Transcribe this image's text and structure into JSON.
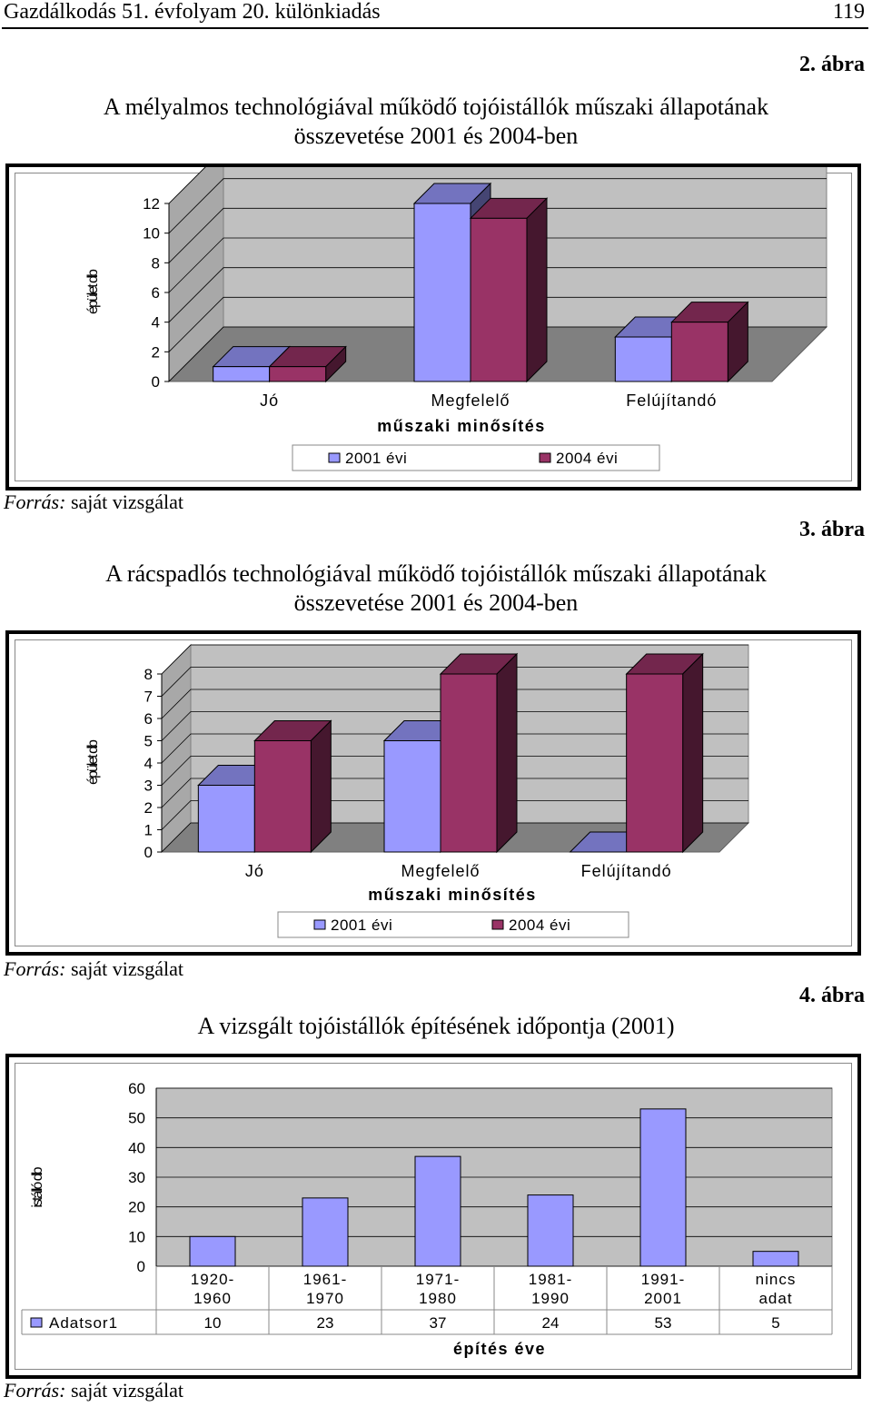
{
  "header": {
    "journal": "Gazdálkodás 51. évfolyam 20. különkiadás",
    "page_number": "119"
  },
  "figures": [
    {
      "label": "2. ábra",
      "title_line1": "A mélyalmos technológiával működő tojóistállók műszaki állapotának",
      "title_line2": "összevetése 2001 és 2004-ben",
      "source_prefix": "Forrás:",
      "source_text": " saját vizsgálat"
    },
    {
      "label": "3. ábra",
      "title_line1": "A rácspadlós technológiával működő tojóistállók műszaki állapotának",
      "title_line2": "összevetése 2001 és 2004-ben",
      "source_prefix": "Forrás:",
      "source_text": " saját vizsgálat"
    },
    {
      "label": "4. ábra",
      "title_line1": "A vizsgált tojóistállók építésének időpontja (2001)",
      "title_line2": "",
      "source_prefix": "Forrás:",
      "source_text": " saját vizsgálat"
    }
  ],
  "chart_data": [
    {
      "type": "bar",
      "title": "",
      "xlabel": "műszaki minősítés",
      "ylabel": "épület db",
      "categories": [
        "Jó",
        "Megfelelő",
        "Felújítandó"
      ],
      "series": [
        {
          "name": "2001 évi",
          "values": [
            1,
            12,
            3
          ],
          "color": "#9999ff"
        },
        {
          "name": "2004 évi",
          "values": [
            1,
            11,
            4
          ],
          "color": "#993366"
        }
      ],
      "yticks": [
        "0",
        "2",
        "4",
        "6",
        "8",
        "10",
        "12"
      ],
      "ylim": [
        0,
        12
      ],
      "grid": true,
      "legend": "bottom"
    },
    {
      "type": "bar",
      "title": "",
      "xlabel": "műszaki minősítés",
      "ylabel": "épület db",
      "categories": [
        "Jó",
        "Megfelelő",
        "Felújítandó"
      ],
      "series": [
        {
          "name": "2001 évi",
          "values": [
            3,
            5,
            0
          ],
          "color": "#9999ff"
        },
        {
          "name": "2004 évi",
          "values": [
            5,
            8,
            8
          ],
          "color": "#993366"
        }
      ],
      "yticks": [
        "0",
        "1",
        "2",
        "3",
        "4",
        "5",
        "6",
        "7",
        "8"
      ],
      "ylim": [
        0,
        8
      ],
      "grid": true,
      "legend": "bottom"
    },
    {
      "type": "bar",
      "title": "",
      "xlabel": "építés éve",
      "ylabel": "istálló db",
      "categories": [
        [
          "1920-",
          "1960"
        ],
        [
          "1961-",
          "1970"
        ],
        [
          "1971-",
          "1980"
        ],
        [
          "1981-",
          "1990"
        ],
        [
          "1991-",
          "2001"
        ],
        [
          "nincs",
          "adat"
        ]
      ],
      "series": [
        {
          "name": "Adatsor1",
          "values": [
            10,
            23,
            37,
            24,
            53,
            5
          ],
          "color": "#9999ff"
        }
      ],
      "table_values": [
        "10",
        "23",
        "37",
        "24",
        "53",
        "5"
      ],
      "yticks": [
        "0",
        "10",
        "20",
        "30",
        "40",
        "50",
        "60"
      ],
      "ylim": [
        0,
        60
      ],
      "grid": true,
      "legend": "data-table"
    }
  ]
}
